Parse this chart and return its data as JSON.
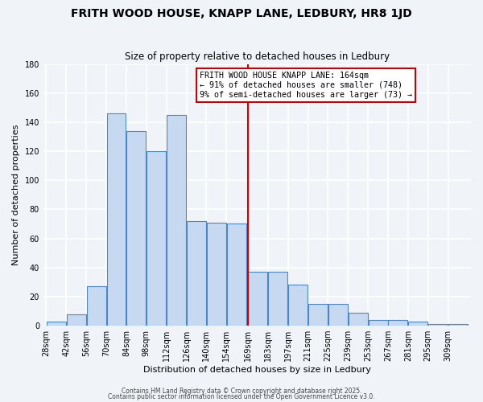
{
  "title": "FRITH WOOD HOUSE, KNAPP LANE, LEDBURY, HR8 1JD",
  "subtitle": "Size of property relative to detached houses in Ledbury",
  "xlabel": "Distribution of detached houses by size in Ledbury",
  "ylabel": "Number of detached properties",
  "bin_labels": [
    "28sqm",
    "42sqm",
    "56sqm",
    "70sqm",
    "84sqm",
    "98sqm",
    "112sqm",
    "126sqm",
    "140sqm",
    "154sqm",
    "169sqm",
    "183sqm",
    "197sqm",
    "211sqm",
    "225sqm",
    "239sqm",
    "253sqm",
    "267sqm",
    "281sqm",
    "295sqm",
    "309sqm"
  ],
  "bin_edges": [
    28,
    42,
    56,
    70,
    84,
    98,
    112,
    126,
    140,
    154,
    169,
    183,
    197,
    211,
    225,
    239,
    253,
    267,
    281,
    295,
    309
  ],
  "bar_heights": [
    3,
    8,
    27,
    146,
    134,
    120,
    145,
    72,
    71,
    70,
    37,
    37,
    28,
    15,
    15,
    9,
    4,
    4,
    3,
    1,
    1
  ],
  "property_size": 164,
  "vline_x": 169,
  "bar_color": "#c6d9f0",
  "bar_edge_color": "#4a86c8",
  "vline_color": "#cc0000",
  "annotation_text": "FRITH WOOD HOUSE KNAPP LANE: 164sqm\n← 91% of detached houses are smaller (748)\n9% of semi-detached houses are larger (73) →",
  "annotation_box_color": "#ffffff",
  "annotation_box_edge": "#cc0000",
  "background_color": "#f0f4f8",
  "grid_color": "#ffffff",
  "ylim": [
    0,
    180
  ],
  "yticks": [
    0,
    20,
    40,
    60,
    80,
    100,
    120,
    140,
    160,
    180
  ],
  "footer1": "Contains HM Land Registry data © Crown copyright and database right 2025.",
  "footer2": "Contains public sector information licensed under the Open Government Licence v3.0."
}
